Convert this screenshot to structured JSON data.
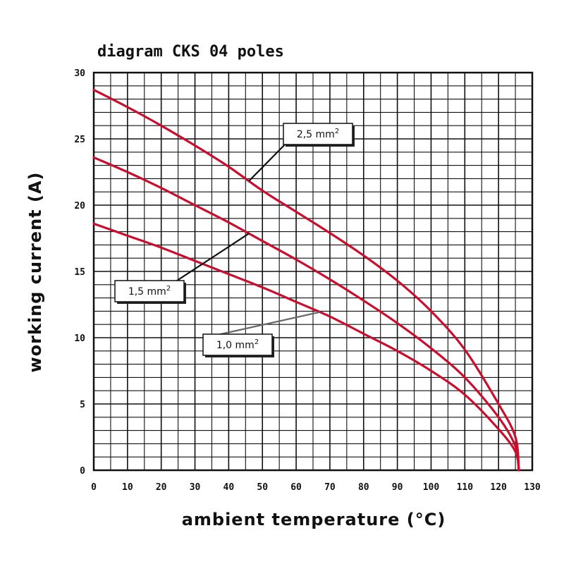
{
  "chart_data": {
    "type": "line",
    "title": "diagram CKS 04 poles",
    "xlabel": "ambient temperature (°C)",
    "ylabel": "working current (A)",
    "xlim": [
      0,
      130
    ],
    "ylim": [
      0,
      30
    ],
    "x_ticks": [
      "0",
      "10",
      "20",
      "30",
      "40",
      "50",
      "60",
      "70",
      "80",
      "90",
      "100",
      "110",
      "120",
      "130"
    ],
    "y_ticks": [
      "0",
      "5",
      "10",
      "15",
      "20",
      "25",
      "30"
    ],
    "grid": true,
    "series": [
      {
        "name": "2,5 mm²",
        "color": "#c8102e",
        "x": [
          0,
          10,
          20,
          30,
          40,
          50,
          60,
          70,
          80,
          90,
          100,
          110,
          120,
          125,
          126
        ],
        "y": [
          28.7,
          27.4,
          26.0,
          24.5,
          22.9,
          21.1,
          19.5,
          17.9,
          16.2,
          14.3,
          12.0,
          9.1,
          5.0,
          2.5,
          0
        ]
      },
      {
        "name": "1,5 mm²",
        "color": "#c8102e",
        "x": [
          0,
          10,
          20,
          30,
          40,
          50,
          60,
          70,
          80,
          90,
          100,
          110,
          120,
          125,
          126
        ],
        "y": [
          23.6,
          22.5,
          21.3,
          20.0,
          18.7,
          17.3,
          15.9,
          14.4,
          12.8,
          11.1,
          9.2,
          7.0,
          4.0,
          1.8,
          0
        ]
      },
      {
        "name": "1,0 mm²",
        "color": "#c8102e",
        "x": [
          0,
          10,
          20,
          30,
          40,
          50,
          60,
          70,
          80,
          90,
          100,
          110,
          120,
          125,
          126
        ],
        "y": [
          18.6,
          17.7,
          16.8,
          15.8,
          14.8,
          13.8,
          12.7,
          11.6,
          10.3,
          9.0,
          7.5,
          5.7,
          3.1,
          1.4,
          0
        ]
      }
    ],
    "annotations": [
      {
        "label": "2,5 mm",
        "sup": "2",
        "target_series": 0
      },
      {
        "label": "1,5 mm",
        "sup": "2",
        "target_series": 1
      },
      {
        "label": "1,0 mm",
        "sup": "2",
        "target_series": 2
      }
    ]
  }
}
